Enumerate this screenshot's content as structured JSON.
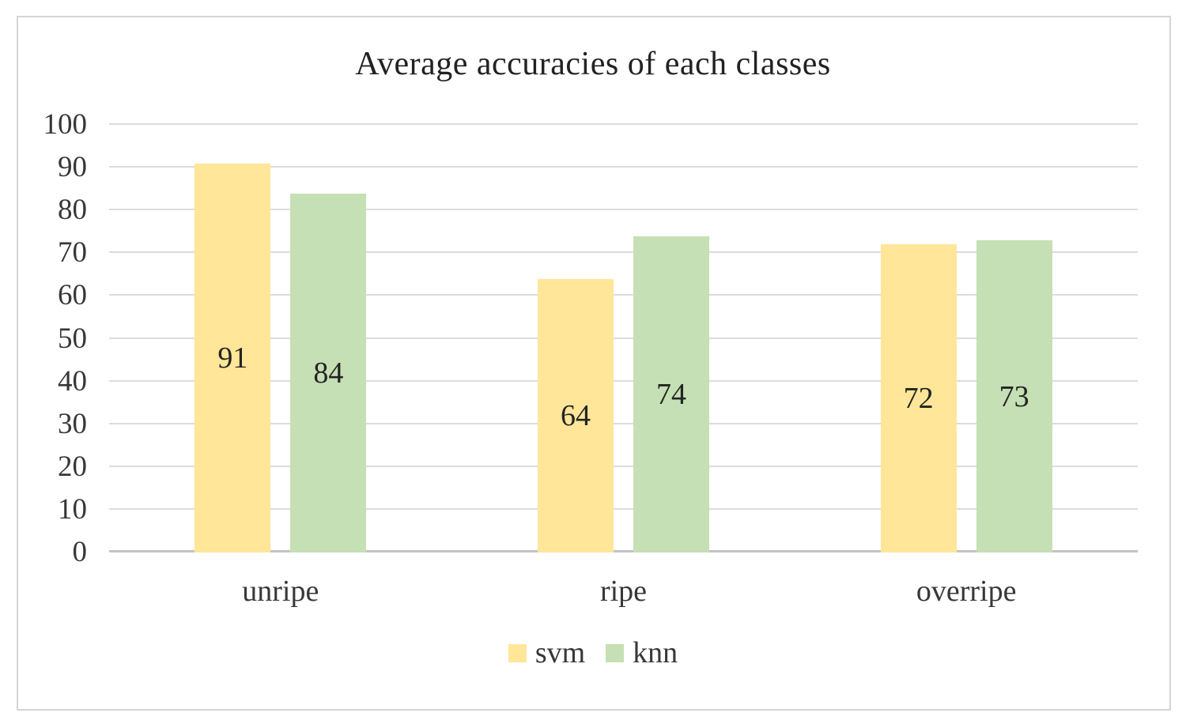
{
  "chart_data": {
    "type": "bar",
    "title": "Average accuracies of each classes",
    "categories": [
      "unripe",
      "ripe",
      "overripe"
    ],
    "series": [
      {
        "name": "svm",
        "color": "#FFE699",
        "values": [
          91,
          64,
          72
        ]
      },
      {
        "name": "knn",
        "color": "#C5E0B4",
        "values": [
          84,
          74,
          73
        ]
      }
    ],
    "xlabel": "",
    "ylabel": "",
    "ylim": [
      0,
      100
    ],
    "yticks": [
      0,
      10,
      20,
      30,
      40,
      50,
      60,
      70,
      80,
      90,
      100
    ],
    "grid": "horizontal",
    "legend_position": "bottom",
    "data_labels": "inside-center",
    "colors": {
      "gridline": "#DCDCDE",
      "zero_line": "#C3C3C6",
      "frame_border": "#D5D5D8",
      "title_text": "#222222",
      "axis_text": "#383838",
      "label_text": "#242424",
      "background": "#FFFFFF"
    }
  }
}
